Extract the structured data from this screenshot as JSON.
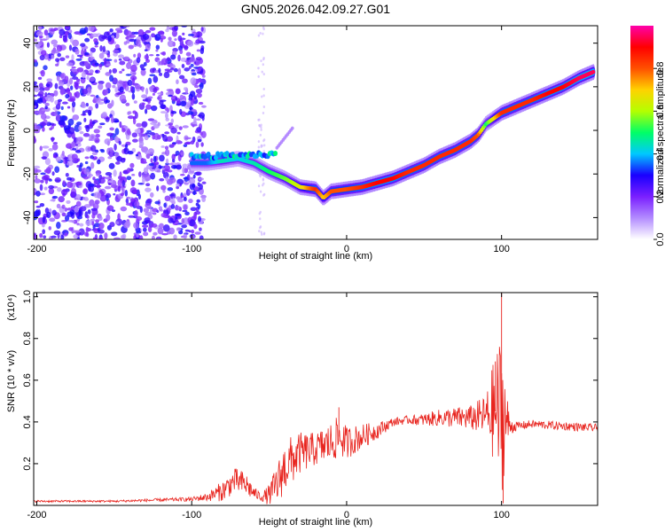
{
  "title": "GN05.2026.042.09.27.G01",
  "chart_data": [
    {
      "type": "heatmap",
      "xlabel": "Height of straight line (km)",
      "ylabel": "Frequency (Hz)",
      "xlim": [
        -202,
        162
      ],
      "ylim": [
        -50,
        48
      ],
      "x_ticks": [
        -200,
        -100,
        0,
        100
      ],
      "y_ticks": [
        -40,
        -20,
        0,
        20,
        40
      ],
      "colorbar": {
        "label": "Normalized spectral amplitude",
        "range": [
          0,
          1
        ],
        "ticks": [
          "0.0",
          "0.2",
          "0.4",
          "0.6",
          "0.8"
        ],
        "colors": [
          "#ffffff",
          "#b38cff",
          "#7a1fff",
          "#1a00ff",
          "#00c8ff",
          "#00ff66",
          "#b4ff00",
          "#ffd200",
          "#ff5000",
          "#ff0000",
          "#ff00aa"
        ]
      },
      "ridge": {
        "x": [
          -100,
          -90,
          -80,
          -70,
          -60,
          -50,
          -40,
          -30,
          -20,
          -15,
          -10,
          0,
          10,
          20,
          30,
          40,
          50,
          60,
          70,
          80,
          85,
          90,
          100,
          110,
          120,
          130,
          140,
          150,
          160
        ],
        "freq": [
          -15,
          -15,
          -14,
          -13,
          -15,
          -19,
          -22,
          -26,
          -27,
          -31,
          -28,
          -27,
          -26,
          -24,
          -22,
          -19,
          -16,
          -12,
          -9,
          -5,
          -2,
          3,
          8,
          11,
          14,
          17,
          20,
          24,
          27
        ],
        "amplitude": [
          0.35,
          0.35,
          0.45,
          0.4,
          0.45,
          0.5,
          0.55,
          0.65,
          0.85,
          0.7,
          0.8,
          0.8,
          0.85,
          0.9,
          0.9,
          0.85,
          0.85,
          0.85,
          0.85,
          0.85,
          0.8,
          0.5,
          0.85,
          0.85,
          0.85,
          0.9,
          0.9,
          0.95,
          0.95
        ]
      },
      "noise_region_x": [
        -202,
        -92
      ],
      "noise_amplitude": 0.15
    },
    {
      "type": "line",
      "xlabel": "Height of straight line (km)",
      "ylabel": "SNR (10 * v/v)",
      "y_scale_label": "(x10⁴)",
      "xlim": [
        -202,
        162
      ],
      "ylim": [
        0,
        1.02
      ],
      "x_ticks": [
        -200,
        -100,
        0,
        100
      ],
      "y_ticks": [
        "0.2",
        "0.4",
        "0.6",
        "0.8",
        "1.0"
      ],
      "color": "#e8251f",
      "series": [
        {
          "x": [
            -202,
            -150,
            -100,
            -90,
            -80,
            -72,
            -65,
            -60,
            -55,
            -50,
            -45,
            -40,
            -35,
            -30,
            -20,
            -10,
            -5,
            0,
            10,
            20,
            30,
            40,
            50,
            60,
            70,
            80,
            90,
            95,
            100,
            105,
            110,
            120,
            140,
            162
          ],
          "y": [
            0.02,
            0.02,
            0.03,
            0.04,
            0.07,
            0.12,
            0.1,
            0.06,
            0.04,
            0.05,
            0.1,
            0.18,
            0.22,
            0.25,
            0.27,
            0.3,
            0.33,
            0.3,
            0.33,
            0.36,
            0.4,
            0.41,
            0.41,
            0.42,
            0.42,
            0.42,
            0.43,
            0.45,
            0.45,
            0.38,
            0.38,
            0.39,
            0.38,
            0.37
          ],
          "spread": [
            0.005,
            0.005,
            0.01,
            0.02,
            0.05,
            0.06,
            0.06,
            0.03,
            0.02,
            0.05,
            0.1,
            0.12,
            0.12,
            0.1,
            0.08,
            0.1,
            0.1,
            0.08,
            0.06,
            0.04,
            0.02,
            0.02,
            0.03,
            0.04,
            0.05,
            0.06,
            0.1,
            0.25,
            0.4,
            0.05,
            0.02,
            0.02,
            0.02,
            0.02
          ]
        }
      ],
      "peaks": [
        {
          "x": -5,
          "y": 0.47
        },
        {
          "x": 96,
          "y": 0.69
        },
        {
          "x": 100,
          "y": 1.02
        },
        {
          "x": 101,
          "y": 0.01
        }
      ]
    }
  ]
}
